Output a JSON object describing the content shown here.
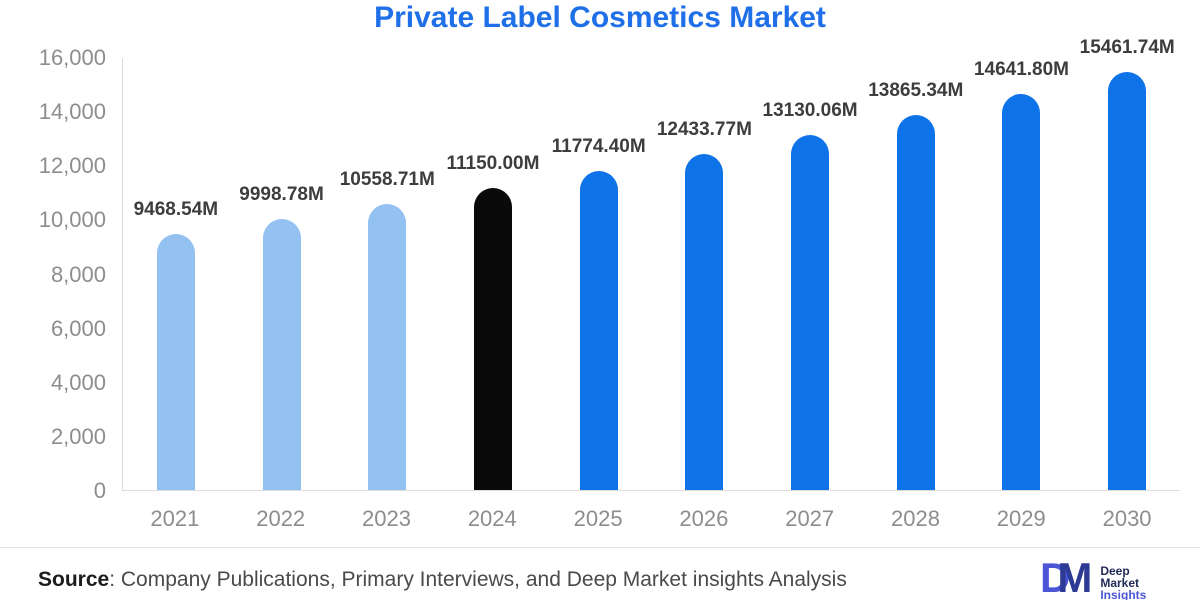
{
  "chart_data": {
    "type": "bar",
    "title": "Private Label Cosmetics Market",
    "categories": [
      "2021",
      "2022",
      "2023",
      "2024",
      "2025",
      "2026",
      "2027",
      "2028",
      "2029",
      "2030"
    ],
    "values": [
      9468.54,
      9998.78,
      10558.71,
      11150.0,
      11774.4,
      12433.77,
      13130.06,
      13865.34,
      14641.8,
      15461.74
    ],
    "value_labels": [
      "9468.54M",
      "9998.78M",
      "10558.71M",
      "11150.00M",
      "11774.40M",
      "12433.77M",
      "13130.06M",
      "13865.34M",
      "14641.80M",
      "15461.74M"
    ],
    "bar_colors": [
      "#92c1f2",
      "#92c1f2",
      "#92c1f2",
      "#0a0a0a",
      "#0e72e8",
      "#0e72e8",
      "#0e72e8",
      "#0e72e8",
      "#0e72e8",
      "#0e72e8"
    ],
    "xlabel": "",
    "ylabel": "",
    "ylim": [
      0,
      16000
    ],
    "y_ticks": [
      {
        "value": 0,
        "label": "0"
      },
      {
        "value": 2000,
        "label": "2,000"
      },
      {
        "value": 4000,
        "label": "4,000"
      },
      {
        "value": 6000,
        "label": "6,000"
      },
      {
        "value": 8000,
        "label": "8,000"
      },
      {
        "value": 10000,
        "label": "10,000"
      },
      {
        "value": 12000,
        "label": "12,000"
      },
      {
        "value": 14000,
        "label": "14,000"
      },
      {
        "value": 16000,
        "label": "16,000"
      }
    ],
    "grid": false,
    "legend": false
  },
  "colors": {
    "title": "#1f6fe8",
    "historical_bar": "#92c1f2",
    "base_year_bar": "#0a0a0a",
    "forecast_bar": "#0e72e8",
    "axis_text": "#8d8d8d",
    "value_label_text": "#3d3d3d"
  },
  "footer": {
    "source_label": "Source",
    "source_text": ": Company Publications, Primary Interviews, and Deep Market insights Analysis",
    "logo": {
      "monogram_d": "D",
      "monogram_m": "M",
      "text_line1": "Deep",
      "text_line2": "Market",
      "text_line3": "Insights"
    }
  }
}
